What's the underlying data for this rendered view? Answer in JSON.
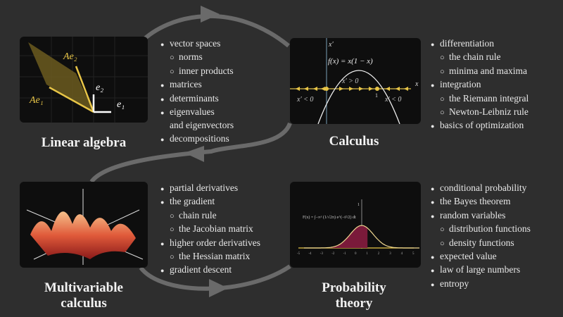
{
  "sections": [
    {
      "title": "Linear algebra",
      "topics": [
        {
          "text": "vector spaces",
          "level": 0
        },
        {
          "text": "norms",
          "level": 1
        },
        {
          "text": "inner products",
          "level": 1
        },
        {
          "text": "matrices",
          "level": 0
        },
        {
          "text": "determinants",
          "level": 0
        },
        {
          "text": "eigenvalues",
          "level": 0
        },
        {
          "text": "and eigenvectors",
          "level": 2
        },
        {
          "text": "decompositions",
          "level": 0
        }
      ],
      "figure_labels": {
        "ae2": "Ae₂",
        "ae1": "Ae₁",
        "e2": "e₂",
        "e1": "e₁"
      }
    },
    {
      "title": "Calculus",
      "topics": [
        {
          "text": "differentiation",
          "level": 0
        },
        {
          "text": "the chain rule",
          "level": 1
        },
        {
          "text": "minima and maxima",
          "level": 1
        },
        {
          "text": "integration",
          "level": 0
        },
        {
          "text": "the Riemann integral",
          "level": 1
        },
        {
          "text": "Newton-Leibniz rule",
          "level": 1
        },
        {
          "text": "basics of optimization",
          "level": 0
        }
      ],
      "figure_labels": {
        "yaxis": "x′",
        "xaxis": "x",
        "func": "f(x) = x(1 − x)",
        "pos": "x′ > 0",
        "negl": "x′ < 0",
        "negr": "x′ < 0",
        "one": "1"
      }
    },
    {
      "title_lines": [
        "Multivariable",
        "calculus"
      ],
      "topics": [
        {
          "text": "partial derivatives",
          "level": 0
        },
        {
          "text": "the gradient",
          "level": 0
        },
        {
          "text": "chain rule",
          "level": 1
        },
        {
          "text": "the Jacobian matrix",
          "level": 1
        },
        {
          "text": "higher order derivatives",
          "level": 0
        },
        {
          "text": "the Hessian matrix",
          "level": 1
        },
        {
          "text": "gradient descent",
          "level": 0
        }
      ]
    },
    {
      "title_lines": [
        "Probability",
        "theory"
      ],
      "topics": [
        {
          "text": "conditional probability",
          "level": 0
        },
        {
          "text": "the Bayes theorem",
          "level": 0
        },
        {
          "text": "random variables",
          "level": 0
        },
        {
          "text": "distribution functions",
          "level": 1
        },
        {
          "text": "density functions",
          "level": 1
        },
        {
          "text": "expected value",
          "level": 0
        },
        {
          "text": "law of large numbers",
          "level": 0
        },
        {
          "text": "entropy",
          "level": 0
        }
      ],
      "figure_labels": {
        "formula": "F(x) = ∫₋∞ˣ (1/√2π) e^(−t²/2) dt",
        "one": "1",
        "ticks": [
          "-5",
          "-4",
          "-3",
          "-2",
          "-1",
          "0",
          "1",
          "2",
          "3",
          "4",
          "5"
        ]
      }
    }
  ],
  "colors": {
    "background": "#2e2e2e",
    "panel": "#0e0e0e",
    "arrow": "#6a6a6a",
    "yellow": "#e8c547",
    "crimson": "#7a1a3a"
  }
}
